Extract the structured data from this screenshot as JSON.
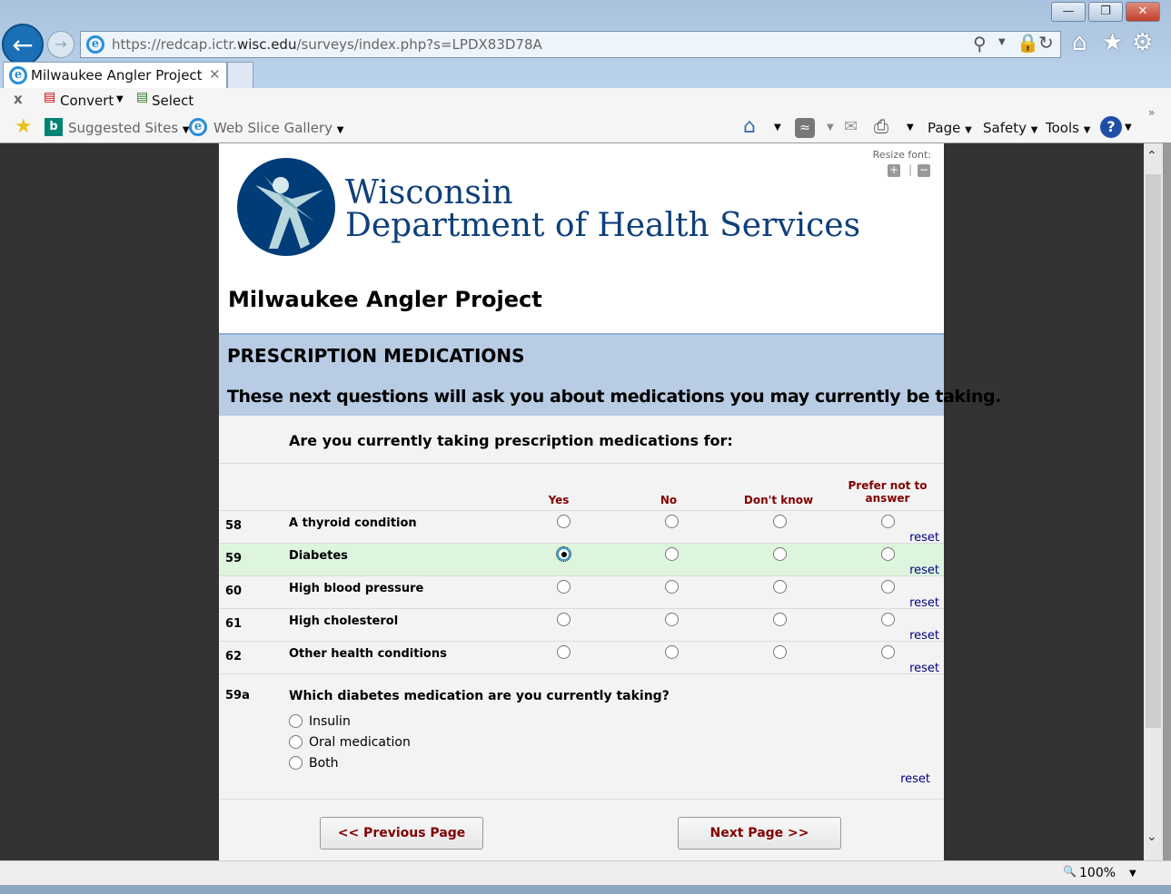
{
  "browser": {
    "url_prefix": "https://redcap.ictr.",
    "url_domain": "wisc.edu",
    "url_rest": "/surveys/index.php?s=LPDX83D78A",
    "tab_title": "Milwaukee Angler Project",
    "toolbar": {
      "convert": "Convert",
      "select": "Select",
      "suggested_sites": "Suggested Sites",
      "web_slice_gallery": "Web Slice Gallery",
      "page": "Page",
      "safety": "Safety",
      "tools": "Tools"
    },
    "zoom": "100%"
  },
  "page": {
    "resize_font": "Resize font:",
    "org_line1": "Wisconsin",
    "org_line2": "Department of Health Services",
    "title": "Milwaukee Angler Project",
    "section_title": "PRESCRIPTION MEDICATIONS",
    "section_intro": "These next questions will ask you about medications you may currently be taking.",
    "matrix_question": "Are you currently taking prescription medications for:",
    "columns": [
      "Yes",
      "No",
      "Don't know",
      "Prefer not to answer"
    ],
    "rows": [
      {
        "num": "58",
        "label": "A thyroid condition",
        "selected": null
      },
      {
        "num": "59",
        "label": "Diabetes",
        "selected": "Yes"
      },
      {
        "num": "60",
        "label": "High blood pressure",
        "selected": null
      },
      {
        "num": "61",
        "label": "High cholesterol",
        "selected": null
      },
      {
        "num": "62",
        "label": "Other health conditions",
        "selected": null
      }
    ],
    "reset": "reset",
    "q59a": {
      "num": "59a",
      "label": "Which diabetes medication are you currently taking?",
      "options": [
        "Insulin",
        "Oral medication",
        "Both"
      ]
    },
    "prev_button": "<< Previous Page",
    "next_button": "Next Page >>",
    "highlight_color": "#dcf5dc",
    "section_color": "#b8cce4",
    "accent_color": "#800000"
  }
}
